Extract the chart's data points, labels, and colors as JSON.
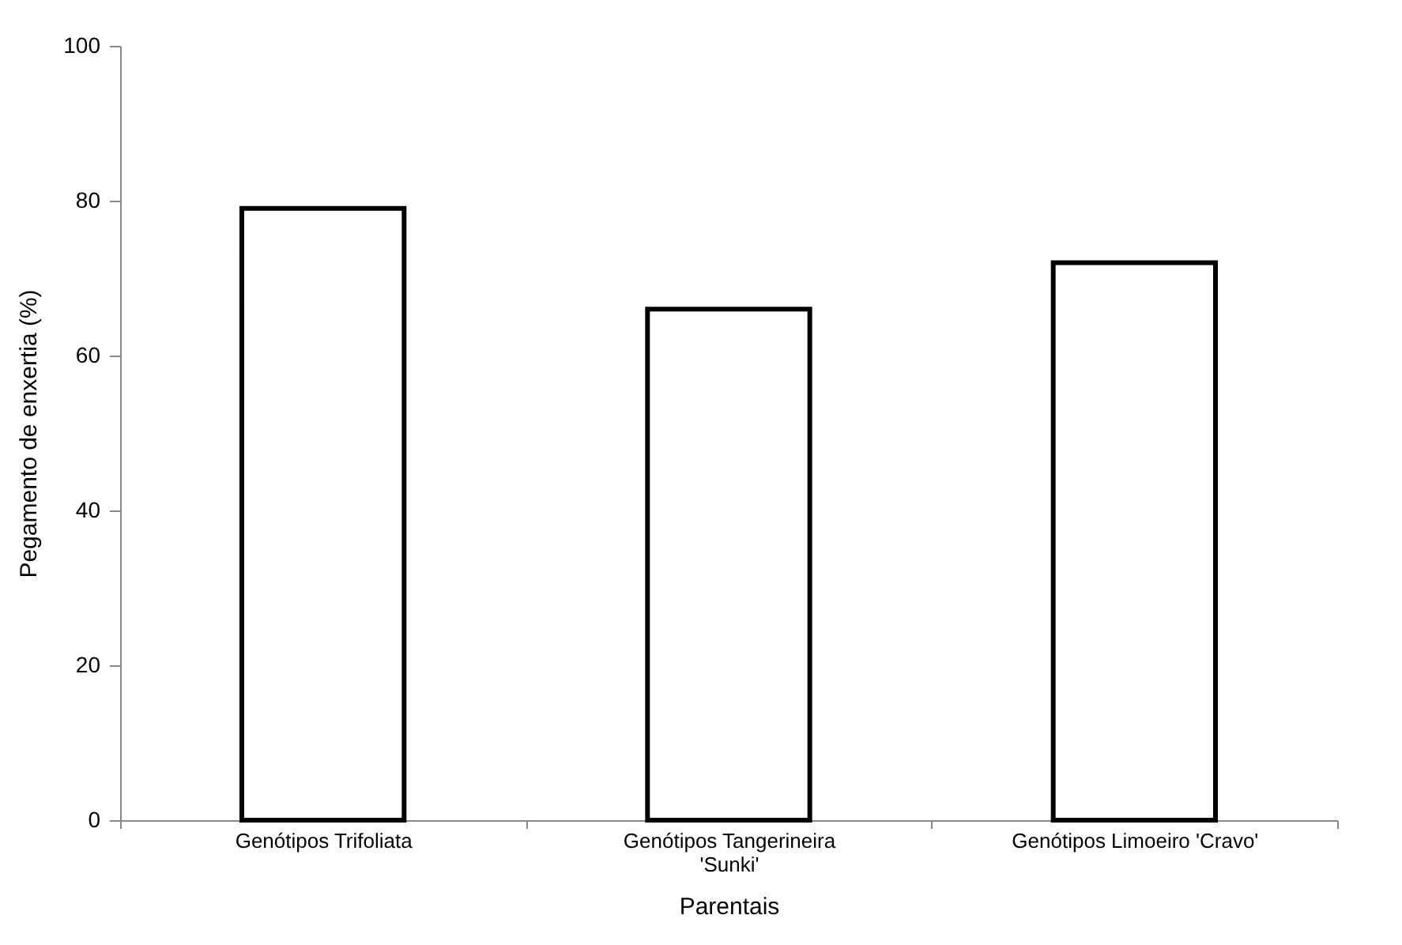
{
  "chart_data": {
    "type": "bar",
    "xlabel": "Parentais",
    "ylabel": "Pegamento de enxertia (%)",
    "categories": [
      "Genótipos Trifoliata",
      "Genótipos Tangerineira 'Sunki'",
      "Genótipos Limoeiro 'Cravo'"
    ],
    "values": [
      79,
      66,
      72
    ],
    "color": "#ffffff",
    "ylim": [
      0,
      100
    ],
    "yticks": [
      0,
      20,
      40,
      60,
      80,
      100
    ],
    "grid": false
  }
}
